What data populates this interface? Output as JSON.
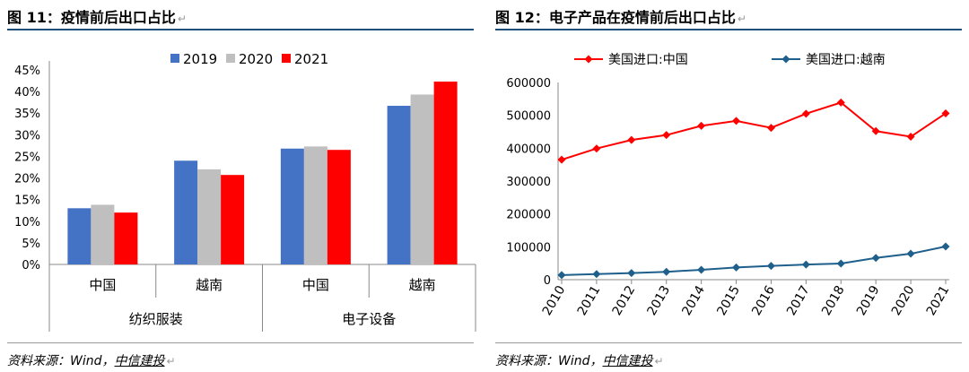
{
  "left": {
    "title": "图 11：疫情前后出口占比",
    "source": "资料来源：Wind，",
    "source_brand": "中信建投",
    "chart_data": {
      "type": "bar",
      "series": [
        {
          "name": "2019",
          "color": "#4472c4",
          "values": [
            13,
            24,
            26.8,
            36.7
          ]
        },
        {
          "name": "2020",
          "color": "#bfbfbf",
          "values": [
            13.8,
            22,
            27.3,
            39.3
          ]
        },
        {
          "name": "2021",
          "color": "#ff0000",
          "values": [
            12,
            20.7,
            26.5,
            42.3
          ]
        }
      ],
      "categories": [
        "中国",
        "越南",
        "中国",
        "越南"
      ],
      "groups": [
        {
          "label": "纺织服装",
          "span": 2
        },
        {
          "label": "电子设备",
          "span": 2
        }
      ],
      "ylim": [
        0,
        45
      ],
      "ytick_labels": [
        "0%",
        "5%",
        "10%",
        "15%",
        "20%",
        "25%",
        "30%",
        "35%",
        "40%",
        "45%"
      ],
      "legend": "top-center",
      "grid": false
    }
  },
  "right": {
    "title": "图 12：电子产品在疫情前后出口占比",
    "source": "资料来源：Wind，",
    "source_brand": "中信建投",
    "chart_data": {
      "type": "line",
      "x": [
        "2010",
        "2011",
        "2012",
        "2013",
        "2014",
        "2015",
        "2016",
        "2017",
        "2018",
        "2019",
        "2020",
        "2021"
      ],
      "series": [
        {
          "name": "美国进口:中国",
          "color": "#ff0000",
          "values": [
            365000,
            399000,
            425000,
            440000,
            468000,
            483000,
            462000,
            505000,
            539000,
            452000,
            435000,
            506000
          ]
        },
        {
          "name": "美国进口:越南",
          "color": "#1f5f8b",
          "values": [
            14000,
            17000,
            20000,
            24000,
            30000,
            37000,
            42000,
            46000,
            49000,
            66000,
            79000,
            101000
          ]
        }
      ],
      "ylim": [
        0,
        600000
      ],
      "ytick_labels": [
        "0",
        "100000",
        "200000",
        "300000",
        "400000",
        "500000",
        "600000"
      ],
      "legend": "top",
      "grid": false
    }
  }
}
